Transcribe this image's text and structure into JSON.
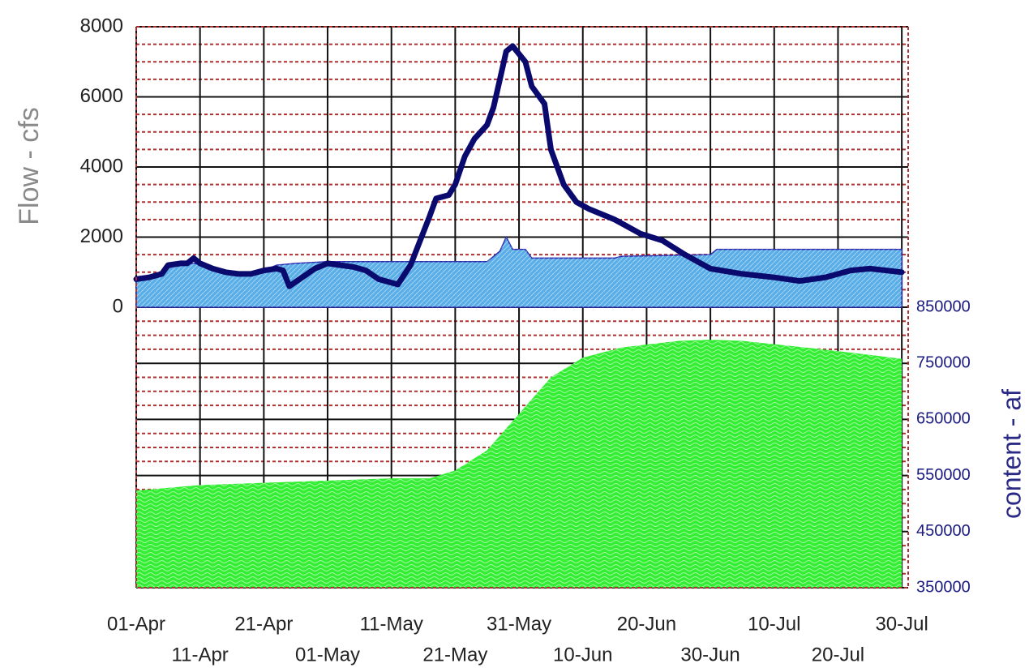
{
  "chart_data": {
    "type": "line",
    "y_label": "Flow - cfs",
    "y2_label": "content - af",
    "xlim": [
      0,
      121
    ],
    "xticks": [
      {
        "value": 0,
        "label": "01-Apr"
      },
      {
        "value": 10,
        "label": "11-Apr"
      },
      {
        "value": 20,
        "label": "21-Apr"
      },
      {
        "value": 30,
        "label": "01-May"
      },
      {
        "value": 40,
        "label": "11-May"
      },
      {
        "value": 50,
        "label": "21-May"
      },
      {
        "value": 60,
        "label": "31-May"
      },
      {
        "value": 70,
        "label": "10-Jun"
      },
      {
        "value": 80,
        "label": "20-Jun"
      },
      {
        "value": 90,
        "label": "30-Jun"
      },
      {
        "value": 100,
        "label": "10-Jul"
      },
      {
        "value": 110,
        "label": "20-Jul"
      },
      {
        "value": 120,
        "label": "30-Jul"
      }
    ],
    "ylim": [
      -8000,
      8000
    ],
    "yticks": [
      0,
      2000,
      4000,
      6000,
      8000
    ],
    "y2lim": [
      350000,
      1350000
    ],
    "y2ticks": [
      350000,
      450000,
      550000,
      650000,
      750000,
      850000
    ],
    "grid": true,
    "minor_grid_divisions": 4,
    "series": [
      {
        "kind": "area",
        "axis": "y2",
        "color": "#33ee33",
        "x": [
          0,
          10,
          20,
          40,
          46,
          50,
          55,
          60,
          65,
          70,
          76,
          85,
          90,
          95,
          105,
          115,
          120
        ],
        "values": [
          523000,
          533000,
          537000,
          545000,
          545000,
          559000,
          595000,
          660000,
          725000,
          760000,
          778000,
          790000,
          792000,
          790000,
          778000,
          765000,
          758000
        ]
      },
      {
        "kind": "area",
        "axis": "y",
        "color": "#5aaee8",
        "x": [
          0,
          3,
          6,
          9,
          12,
          16,
          20,
          22,
          25,
          30,
          55,
          57,
          58,
          59,
          61,
          62,
          75,
          76,
          90,
          91,
          120
        ],
        "values": [
          800,
          900,
          1200,
          1250,
          1150,
          950,
          1050,
          1200,
          1250,
          1300,
          1300,
          1600,
          2000,
          1650,
          1650,
          1400,
          1400,
          1450,
          1500,
          1650,
          1650
        ]
      },
      {
        "kind": "line",
        "axis": "y",
        "color": "#0a0a6e",
        "x": [
          0,
          2,
          4,
          5,
          7,
          8,
          9,
          10,
          12,
          14,
          16,
          18,
          20,
          22,
          23,
          24,
          26,
          28,
          30,
          32,
          34,
          36,
          38,
          40,
          41,
          43,
          46,
          47,
          49,
          50,
          51.5,
          53,
          55,
          56,
          57,
          58,
          59,
          61,
          62,
          64,
          65,
          67,
          69,
          71,
          75,
          79,
          82.5,
          86,
          90,
          95,
          100,
          104,
          108,
          112,
          115,
          120
        ],
        "values": [
          800,
          850,
          950,
          1200,
          1250,
          1250,
          1400,
          1250,
          1100,
          1000,
          950,
          950,
          1050,
          1100,
          1050,
          600,
          850,
          1100,
          1250,
          1200,
          1150,
          1050,
          800,
          700,
          650,
          1200,
          2600,
          3100,
          3200,
          3500,
          4300,
          4800,
          5200,
          5700,
          6500,
          7300,
          7450,
          7000,
          6300,
          5800,
          4500,
          3500,
          3000,
          2800,
          2500,
          2100,
          1900,
          1500,
          1100,
          950,
          850,
          750,
          850,
          1050,
          1100,
          1000
        ]
      }
    ]
  }
}
